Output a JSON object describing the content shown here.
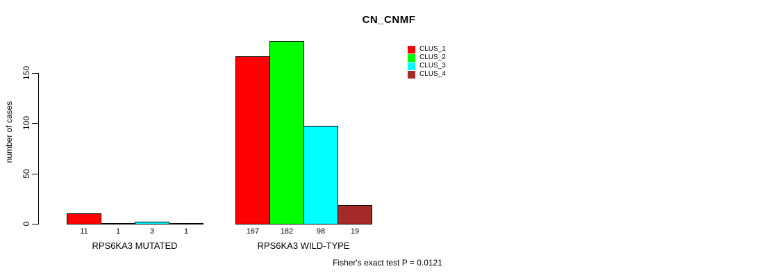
{
  "chart_data": {
    "type": "bar",
    "title": "CN_CNMF",
    "ylabel": "number of cases",
    "xlabel": "",
    "ylim": [
      0,
      190
    ],
    "yticks": [
      0,
      50,
      100,
      150
    ],
    "grid": false,
    "legend_position": "top-right",
    "show_value_labels": true,
    "categories": [
      "RPS6KA3 MUTATED",
      "RPS6KA3 WILD-TYPE"
    ],
    "series": [
      {
        "name": "CLUS_1",
        "color": "#FF0000",
        "values": [
          11,
          167
        ]
      },
      {
        "name": "CLUS_2",
        "color": "#00FF00",
        "values": [
          1,
          182
        ]
      },
      {
        "name": "CLUS_3",
        "color": "#00FFFF",
        "values": [
          3,
          98
        ]
      },
      {
        "name": "CLUS_4",
        "color": "#A52A2A",
        "values": [
          1,
          19
        ]
      }
    ],
    "annotation": "Fisher's exact test P = 0.0121"
  }
}
